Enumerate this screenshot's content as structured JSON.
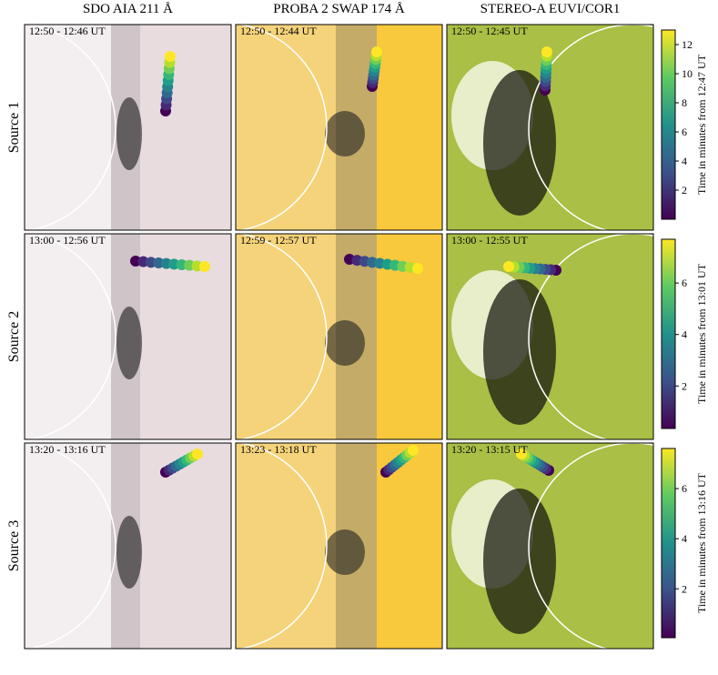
{
  "columns": [
    "SDO AIA 211 Å",
    "PROBA 2 SWAP 174 Å",
    "STEREO-A EUVI/COR1"
  ],
  "rows": [
    {
      "label": "Source 1",
      "times": [
        "12:50 - 12:46 UT",
        "12:50 - 12:44 UT",
        "12:50 - 12:45 UT"
      ],
      "colorbar": {
        "label": "Time in minutes from 12:47 UT",
        "lim": [
          0,
          13
        ],
        "ticks": [
          2,
          4,
          6,
          8,
          10,
          12
        ]
      }
    },
    {
      "label": "Source 2",
      "times": [
        "13:00 - 12:56 UT",
        "12:59 - 12:57 UT",
        "13:00 - 12:55 UT"
      ],
      "colorbar": {
        "label": "Time in minutes from 13:01 UT",
        "lim": [
          0.35,
          7.7
        ],
        "ticks": [
          2,
          4,
          6
        ]
      }
    },
    {
      "label": "Source 3",
      "times": [
        "13:20 - 13:16 UT",
        "13:23 - 13:18 UT",
        "13:20 - 13:15 UT"
      ],
      "colorbar": {
        "label": "Time in minutes from 13:16 UT",
        "lim": [
          0.05,
          7.6
        ],
        "ticks": [
          2,
          4,
          6
        ]
      }
    }
  ]
}
